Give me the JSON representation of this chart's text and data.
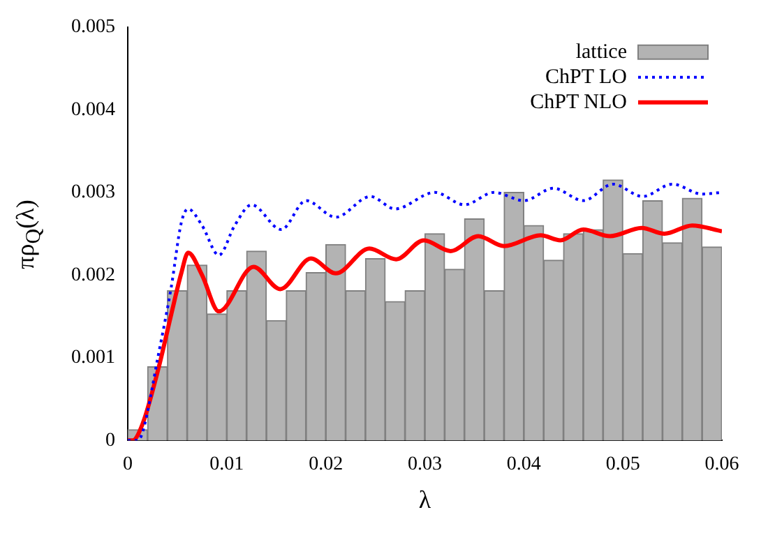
{
  "chart_data": {
    "type": "histogram",
    "xlabel": "λ",
    "ylabel": "πρ$_{Q}$(λ)",
    "bins": [
      0,
      0.002,
      0.004,
      0.006,
      0.008,
      0.01,
      0.012,
      0.014,
      0.016,
      0.018,
      0.02,
      0.022,
      0.024,
      0.026,
      0.028,
      0.03,
      0.032,
      0.034,
      0.036,
      0.038,
      0.04,
      0.042,
      0.044,
      0.046,
      0.048,
      0.05,
      0.052,
      0.054,
      0.056,
      0.058,
      0.06
    ],
    "series": [
      {
        "name": "lattice",
        "type": "histogram",
        "color": "#b3b3b3",
        "values": [
          0.00013,
          0.00089,
          0.00181,
          0.00212,
          0.00153,
          0.00181,
          0.00229,
          0.00145,
          0.00181,
          0.00203,
          0.00237,
          0.00181,
          0.0022,
          0.00168,
          0.00181,
          0.0025,
          0.00207,
          0.00268,
          0.00181,
          0.003,
          0.0026,
          0.00218,
          0.0025,
          0.00255,
          0.00315,
          0.00226,
          0.0029,
          0.00239,
          0.00293,
          0.00234
        ]
      },
      {
        "name": "ChPT LO",
        "type": "line",
        "color": "#0000ff",
        "line_style": "dotted",
        "x": [
          0,
          0.001,
          0.0015,
          0.0031,
          0.0044,
          0.0054,
          0.0061,
          0.0075,
          0.0092,
          0.0108,
          0.0125,
          0.0155,
          0.018,
          0.021,
          0.0245,
          0.027,
          0.031,
          0.034,
          0.037,
          0.04,
          0.043,
          0.046,
          0.049,
          0.052,
          0.055,
          0.058,
          0.06
        ],
        "values": [
          0,
          0,
          0.0001,
          0.00104,
          0.00186,
          0.00263,
          0.0028,
          0.0026,
          0.00224,
          0.0026,
          0.00285,
          0.00255,
          0.0029,
          0.0027,
          0.00295,
          0.0028,
          0.003,
          0.00285,
          0.003,
          0.0029,
          0.00305,
          0.0029,
          0.0031,
          0.00295,
          0.0031,
          0.00298,
          0.003
        ]
      },
      {
        "name": "ChPT NLO",
        "type": "line",
        "color": "#ff0000",
        "line_style": "solid",
        "x": [
          0,
          0.0005,
          0.0015,
          0.0031,
          0.0044,
          0.0054,
          0.0061,
          0.0075,
          0.0092,
          0.0127,
          0.0154,
          0.0185,
          0.021,
          0.0244,
          0.0271,
          0.0299,
          0.0326,
          0.0354,
          0.038,
          0.0417,
          0.0437,
          0.046,
          0.0487,
          0.0519,
          0.0542,
          0.057,
          0.06
        ],
        "values": [
          0,
          0,
          0.0002,
          0.00087,
          0.00153,
          0.00202,
          0.00227,
          0.002,
          0.00156,
          0.0021,
          0.00183,
          0.0022,
          0.00202,
          0.00232,
          0.00219,
          0.00242,
          0.00229,
          0.00247,
          0.00235,
          0.00248,
          0.00242,
          0.00255,
          0.00247,
          0.00257,
          0.0025,
          0.0026,
          0.00253
        ]
      }
    ],
    "xlim": [
      0,
      0.06
    ],
    "xticks": [
      0,
      0.01,
      0.02,
      0.03,
      0.04,
      0.05,
      0.06
    ],
    "ylim": [
      0,
      0.005
    ],
    "yticks": [
      0,
      0.001,
      0.002,
      0.003,
      0.004,
      0.005
    ],
    "grid": false,
    "legend": "top right"
  }
}
